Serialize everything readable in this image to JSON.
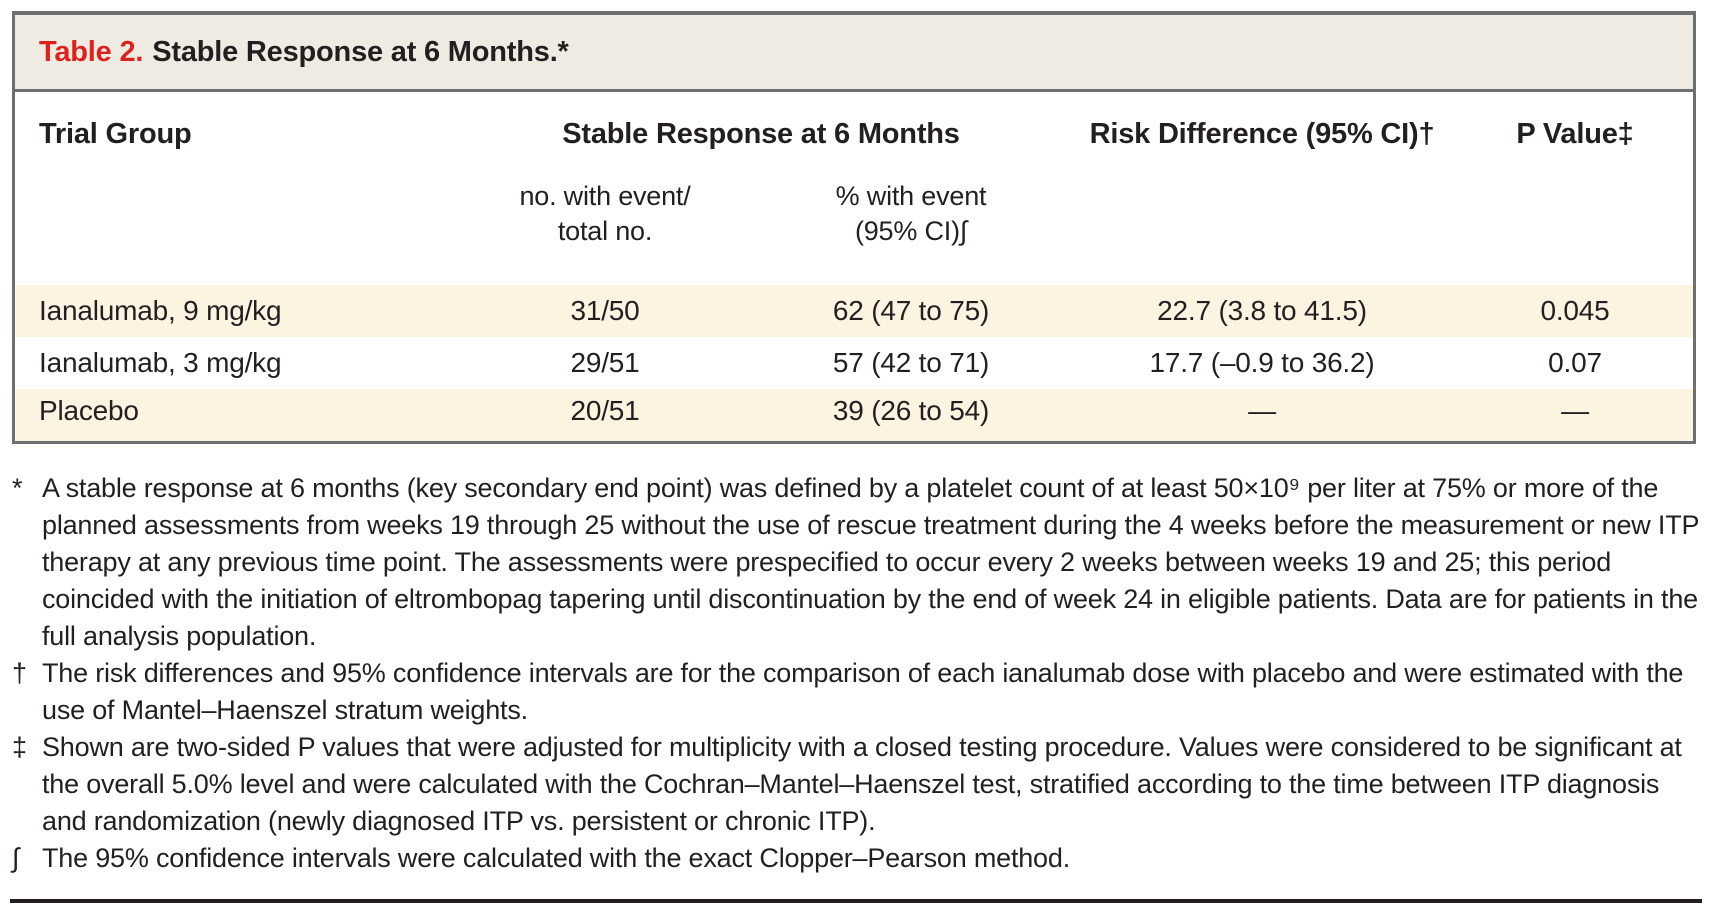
{
  "table": {
    "title_label": "Table 2.",
    "title_text": "Stable Response at 6 Months.*",
    "columns": {
      "trial_group": "Trial Group",
      "group_header": "Stable Response at 6 Months",
      "risk_diff": "Risk Difference (95% CI)†",
      "p_value": "P Value‡",
      "sub_events": "no. with event/\ntotal no.",
      "sub_percent": "% with event\n(95% CI)∫"
    },
    "rows": [
      {
        "group": "Ianalumab, 9 mg/kg",
        "events": "31/50",
        "percent": "62 (47 to 75)",
        "risk_diff": "22.7 (3.8 to 41.5)",
        "p_value": "0.045"
      },
      {
        "group": "Ianalumab, 3 mg/kg",
        "events": "29/51",
        "percent": "57 (42 to 71)",
        "risk_diff": "17.7 (–0.9 to 36.2)",
        "p_value": "0.07"
      },
      {
        "group": "Placebo",
        "events": "20/51",
        "percent": "39 (26 to 54)",
        "risk_diff": "—",
        "p_value": "—"
      }
    ]
  },
  "footnotes": [
    {
      "marker": "*",
      "text": "A stable response at 6 months (key secondary end point) was defined by a platelet count of at least 50×10⁹ per liter at 75% or more of the planned assessments from weeks 19 through 25 without the use of rescue treatment during the 4 weeks before the measurement or new ITP therapy at any previous time point. The assessments were prespecified to occur every 2 weeks between weeks 19 and 25; this period coincided with the initiation of eltrombopag tapering until discontinuation by the end of week 24 in eligible patients. Data are for patients in the full analysis population."
    },
    {
      "marker": "†",
      "text": "The risk differences and 95% confidence intervals are for the comparison of each ianalumab dose with placebo and were estimated with the use of Mantel–Haenszel stratum weights."
    },
    {
      "marker": "‡",
      "text": "Shown are two-sided P values that were adjusted for multiplicity with a closed testing procedure. Values were considered to be significant at the overall 5.0% level and were calculated with the Cochran–Mantel–Haenszel test, stratified according to the time between ITP diagnosis and randomization (newly diagnosed ITP vs. persistent or chronic ITP)."
    },
    {
      "marker": "∫",
      "text": "The 95% confidence intervals were calculated with the exact Clopper–Pearson method."
    }
  ],
  "colors": {
    "accent": "#d8231f",
    "titlebar": "#f0ebe2",
    "stripe": "#fcf3e1",
    "border": "#6e6f71",
    "rule": "#231f20"
  }
}
